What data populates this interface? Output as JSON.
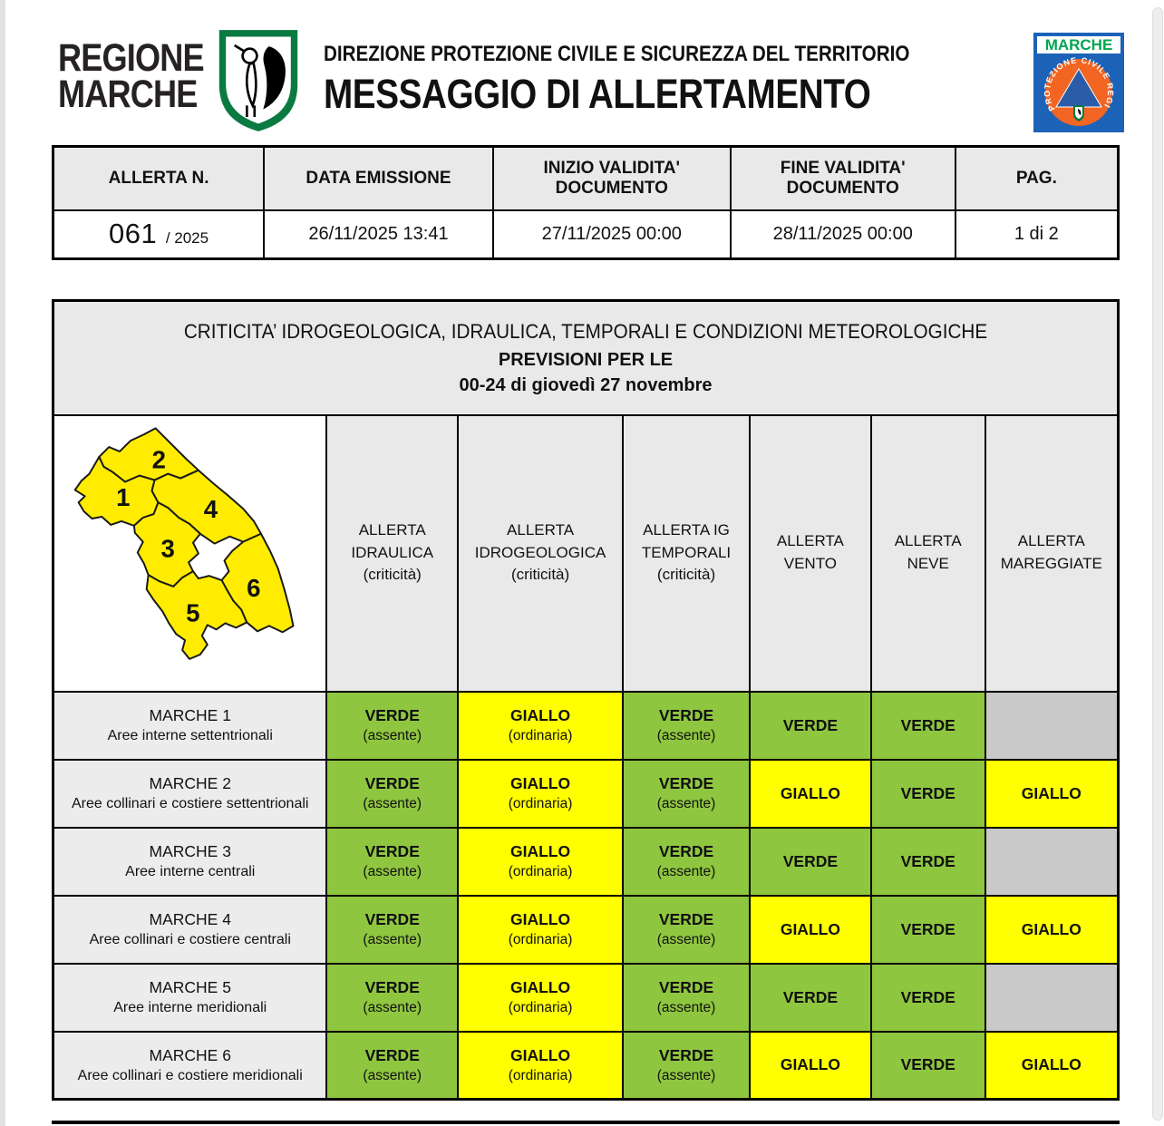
{
  "header": {
    "org_line1": "REGIONE",
    "org_line2": "MARCHE",
    "dept_title": "DIREZIONE PROTEZIONE CIVILE E SICUREZZA DEL TERRITORIO",
    "doc_title": "MESSAGGIO DI ALLERTAMENTO",
    "right_logo_label": "MARCHE",
    "right_logo_circle_text": "PROTEZIONE CIVILE REGIONALE"
  },
  "info_table": {
    "headers": [
      "ALLERTA N.",
      "DATA EMISSIONE",
      "INIZIO VALIDITA'\nDOCUMENTO",
      "FINE VALIDITA'\nDOCUMENTO",
      "PAG."
    ],
    "alert_number": "061",
    "alert_year": "/ 2025",
    "data_emissione": "26/11/2025 13:41",
    "inizio_validita": "27/11/2025 00:00",
    "fine_validita": "28/11/2025 00:00",
    "page": "1 di 2"
  },
  "forecast_table": {
    "title_line1": "CRITICITA’ IDROGEOLOGICA, IDRAULICA, TEMPORALI E CONDIZIONI METEOROLOGICHE",
    "title_line2": "PREVISIONI PER LE",
    "title_line3": "00-24 di giovedì 27 novembre",
    "map_zones": [
      "1",
      "2",
      "3",
      "4",
      "5",
      "6"
    ],
    "columns": [
      {
        "key": "allerta-idraulica",
        "label": "ALLERTA\nIDRAULICA\n(criticità)"
      },
      {
        "key": "allerta-idrogeologica",
        "label": "ALLERTA\nIDROGEOLOGICA\n(criticità)"
      },
      {
        "key": "allerta-ig-temporali",
        "label": "ALLERTA IG\nTEMPORALI\n(criticità)"
      },
      {
        "key": "allerta-vento",
        "label": "ALLERTA\nVENTO"
      },
      {
        "key": "allerta-neve",
        "label": "ALLERTA\nNEVE"
      },
      {
        "key": "allerta-mareggiate",
        "label": "ALLERTA\nMAREGGIATE"
      }
    ],
    "rows": [
      {
        "zone": "MARCHE 1",
        "area": "Aree interne settentrionali",
        "cells": [
          {
            "level": "VERDE",
            "detail": "(assente)",
            "state": "verde"
          },
          {
            "level": "GIALLO",
            "detail": "(ordinaria)",
            "state": "giallo"
          },
          {
            "level": "VERDE",
            "detail": "(assente)",
            "state": "verde"
          },
          {
            "level": "VERDE",
            "detail": "",
            "state": "verde"
          },
          {
            "level": "VERDE",
            "detail": "",
            "state": "verde"
          },
          {
            "level": "",
            "detail": "",
            "state": "empty"
          }
        ]
      },
      {
        "zone": "MARCHE 2",
        "area": "Aree collinari e costiere settentrionali",
        "cells": [
          {
            "level": "VERDE",
            "detail": "(assente)",
            "state": "verde"
          },
          {
            "level": "GIALLO",
            "detail": "(ordinaria)",
            "state": "giallo"
          },
          {
            "level": "VERDE",
            "detail": "(assente)",
            "state": "verde"
          },
          {
            "level": "GIALLO",
            "detail": "",
            "state": "giallo"
          },
          {
            "level": "VERDE",
            "detail": "",
            "state": "verde"
          },
          {
            "level": "GIALLO",
            "detail": "",
            "state": "giallo"
          }
        ]
      },
      {
        "zone": "MARCHE 3",
        "area": "Aree interne centrali",
        "cells": [
          {
            "level": "VERDE",
            "detail": "(assente)",
            "state": "verde"
          },
          {
            "level": "GIALLO",
            "detail": "(ordinaria)",
            "state": "giallo"
          },
          {
            "level": "VERDE",
            "detail": "(assente)",
            "state": "verde"
          },
          {
            "level": "VERDE",
            "detail": "",
            "state": "verde"
          },
          {
            "level": "VERDE",
            "detail": "",
            "state": "verde"
          },
          {
            "level": "",
            "detail": "",
            "state": "empty"
          }
        ]
      },
      {
        "zone": "MARCHE 4",
        "area": "Aree collinari e costiere centrali",
        "cells": [
          {
            "level": "VERDE",
            "detail": "(assente)",
            "state": "verde"
          },
          {
            "level": "GIALLO",
            "detail": "(ordinaria)",
            "state": "giallo"
          },
          {
            "level": "VERDE",
            "detail": "(assente)",
            "state": "verde"
          },
          {
            "level": "GIALLO",
            "detail": "",
            "state": "giallo"
          },
          {
            "level": "VERDE",
            "detail": "",
            "state": "verde"
          },
          {
            "level": "GIALLO",
            "detail": "",
            "state": "giallo"
          }
        ]
      },
      {
        "zone": "MARCHE 5",
        "area": "Aree interne meridionali",
        "cells": [
          {
            "level": "VERDE",
            "detail": "(assente)",
            "state": "verde"
          },
          {
            "level": "GIALLO",
            "detail": "(ordinaria)",
            "state": "giallo"
          },
          {
            "level": "VERDE",
            "detail": "(assente)",
            "state": "verde"
          },
          {
            "level": "VERDE",
            "detail": "",
            "state": "verde"
          },
          {
            "level": "VERDE",
            "detail": "",
            "state": "verde"
          },
          {
            "level": "",
            "detail": "",
            "state": "empty"
          }
        ]
      },
      {
        "zone": "MARCHE 6",
        "area": "Aree collinari e costiere meridionali",
        "cells": [
          {
            "level": "VERDE",
            "detail": "(assente)",
            "state": "verde"
          },
          {
            "level": "GIALLO",
            "detail": "(ordinaria)",
            "state": "giallo"
          },
          {
            "level": "VERDE",
            "detail": "(assente)",
            "state": "verde"
          },
          {
            "level": "GIALLO",
            "detail": "",
            "state": "giallo"
          },
          {
            "level": "VERDE",
            "detail": "",
            "state": "verde"
          },
          {
            "level": "GIALLO",
            "detail": "",
            "state": "giallo"
          }
        ]
      }
    ]
  },
  "colors": {
    "verde": "#8fc640",
    "giallo": "#ffff00",
    "vuoto": "#c9c9c9",
    "map": "#ffec00",
    "logo_green": "#0a7a40",
    "logo_blue": "#1c63b8",
    "logo_orange": "#f26522",
    "logo_text_green": "#00a650"
  }
}
